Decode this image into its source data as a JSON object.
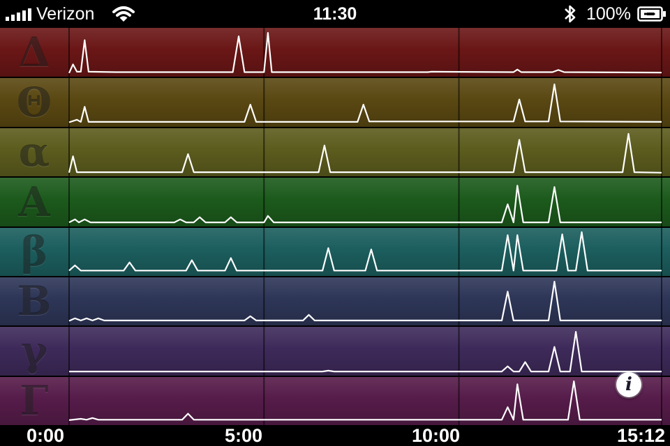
{
  "status_bar": {
    "carrier": "Verizon",
    "time": "11:30",
    "battery": "100%",
    "icons": [
      "signal-bars-icon",
      "wifi-icon",
      "bluetooth-icon",
      "battery-charging-icon"
    ]
  },
  "info_button": {
    "glyph": "i",
    "icon": "info-icon"
  },
  "chart_data": {
    "type": "line",
    "title": "",
    "xlabel": "",
    "ylabel": "",
    "x_unit": "minutes",
    "xlim": [
      0,
      15.2
    ],
    "ylim": [
      0,
      1
    ],
    "grid": true,
    "x_ticks": [
      {
        "value": 0,
        "label": "0:00"
      },
      {
        "value": 5,
        "label": "5:00"
      },
      {
        "value": 10,
        "label": "10:00"
      },
      {
        "value": 15.2,
        "label": "15:12"
      }
    ],
    "series": [
      {
        "name": "Δ",
        "color": "#6a1616",
        "points": [
          [
            0,
            0.02
          ],
          [
            0.1,
            0.22
          ],
          [
            0.2,
            0.05
          ],
          [
            0.3,
            0.05
          ],
          [
            0.4,
            0.78
          ],
          [
            0.5,
            0.05
          ],
          [
            1.2,
            0.04
          ],
          [
            4.2,
            0.04
          ],
          [
            4.35,
            0.87
          ],
          [
            4.5,
            0.04
          ],
          [
            5.0,
            0.04
          ],
          [
            5.1,
            0.95
          ],
          [
            5.2,
            0.04
          ],
          [
            9.2,
            0.04
          ],
          [
            9.3,
            0.05
          ],
          [
            11.4,
            0.04
          ],
          [
            11.5,
            0.1
          ],
          [
            11.6,
            0.04
          ],
          [
            12.4,
            0.04
          ],
          [
            12.55,
            0.09
          ],
          [
            12.7,
            0.04
          ],
          [
            15.2,
            0.03
          ]
        ]
      },
      {
        "name": "Θ",
        "color": "#5a4812",
        "points": [
          [
            0,
            0.04
          ],
          [
            0.2,
            0.1
          ],
          [
            0.3,
            0.05
          ],
          [
            0.4,
            0.4
          ],
          [
            0.5,
            0.05
          ],
          [
            4.5,
            0.05
          ],
          [
            4.65,
            0.45
          ],
          [
            4.8,
            0.05
          ],
          [
            7.4,
            0.05
          ],
          [
            7.55,
            0.45
          ],
          [
            7.7,
            0.06
          ],
          [
            11.4,
            0.06
          ],
          [
            11.55,
            0.57
          ],
          [
            11.7,
            0.06
          ],
          [
            12.3,
            0.06
          ],
          [
            12.45,
            0.92
          ],
          [
            12.6,
            0.06
          ],
          [
            15.2,
            0.05
          ]
        ]
      },
      {
        "name": "α",
        "color": "#5c5c1e",
        "points": [
          [
            0,
            0.02
          ],
          [
            0.1,
            0.4
          ],
          [
            0.2,
            0.03
          ],
          [
            2.9,
            0.03
          ],
          [
            3.05,
            0.45
          ],
          [
            3.2,
            0.03
          ],
          [
            6.4,
            0.03
          ],
          [
            6.55,
            0.65
          ],
          [
            6.7,
            0.03
          ],
          [
            11.4,
            0.03
          ],
          [
            11.55,
            0.78
          ],
          [
            11.7,
            0.03
          ],
          [
            14.2,
            0.03
          ],
          [
            14.35,
            0.92
          ],
          [
            14.5,
            0.03
          ],
          [
            15.2,
            0.02
          ]
        ]
      },
      {
        "name": "A",
        "color": "#1c5a1c",
        "points": [
          [
            0,
            0.03
          ],
          [
            0.15,
            0.1
          ],
          [
            0.25,
            0.03
          ],
          [
            0.4,
            0.1
          ],
          [
            0.55,
            0.03
          ],
          [
            2.7,
            0.03
          ],
          [
            2.85,
            0.1
          ],
          [
            3.0,
            0.03
          ],
          [
            3.2,
            0.03
          ],
          [
            3.35,
            0.15
          ],
          [
            3.5,
            0.03
          ],
          [
            4.0,
            0.03
          ],
          [
            4.15,
            0.15
          ],
          [
            4.3,
            0.03
          ],
          [
            5.0,
            0.03
          ],
          [
            5.1,
            0.18
          ],
          [
            5.25,
            0.03
          ],
          [
            11.1,
            0.03
          ],
          [
            11.25,
            0.45
          ],
          [
            11.4,
            0.03
          ],
          [
            11.5,
            0.88
          ],
          [
            11.65,
            0.03
          ],
          [
            12.3,
            0.03
          ],
          [
            12.45,
            0.85
          ],
          [
            12.6,
            0.03
          ],
          [
            15.2,
            0.03
          ]
        ]
      },
      {
        "name": "β",
        "color": "#1c5e5e",
        "points": [
          [
            0,
            0.06
          ],
          [
            0.15,
            0.18
          ],
          [
            0.3,
            0.06
          ],
          [
            1.4,
            0.06
          ],
          [
            1.55,
            0.25
          ],
          [
            1.7,
            0.06
          ],
          [
            3.0,
            0.06
          ],
          [
            3.15,
            0.3
          ],
          [
            3.3,
            0.06
          ],
          [
            4.0,
            0.06
          ],
          [
            4.15,
            0.35
          ],
          [
            4.3,
            0.06
          ],
          [
            6.5,
            0.06
          ],
          [
            6.65,
            0.58
          ],
          [
            6.8,
            0.06
          ],
          [
            7.6,
            0.06
          ],
          [
            7.75,
            0.55
          ],
          [
            7.9,
            0.06
          ],
          [
            11.1,
            0.06
          ],
          [
            11.25,
            0.88
          ],
          [
            11.4,
            0.06
          ],
          [
            11.5,
            0.88
          ],
          [
            11.65,
            0.06
          ],
          [
            12.5,
            0.06
          ],
          [
            12.65,
            0.9
          ],
          [
            12.8,
            0.06
          ],
          [
            13.0,
            0.06
          ],
          [
            13.15,
            0.95
          ],
          [
            13.3,
            0.06
          ],
          [
            15.2,
            0.06
          ]
        ]
      },
      {
        "name": "B",
        "color": "#2e3658",
        "points": [
          [
            0,
            0.04
          ],
          [
            0.15,
            0.1
          ],
          [
            0.3,
            0.05
          ],
          [
            0.45,
            0.1
          ],
          [
            0.6,
            0.05
          ],
          [
            0.75,
            0.1
          ],
          [
            0.9,
            0.05
          ],
          [
            4.5,
            0.05
          ],
          [
            4.65,
            0.15
          ],
          [
            4.8,
            0.05
          ],
          [
            6.0,
            0.05
          ],
          [
            6.15,
            0.18
          ],
          [
            6.3,
            0.05
          ],
          [
            11.1,
            0.05
          ],
          [
            11.25,
            0.72
          ],
          [
            11.4,
            0.05
          ],
          [
            12.3,
            0.05
          ],
          [
            12.45,
            0.95
          ],
          [
            12.6,
            0.05
          ],
          [
            15.2,
            0.05
          ]
        ]
      },
      {
        "name": "γ",
        "color": "#3e2a5a",
        "points": [
          [
            0,
            0.03
          ],
          [
            6.5,
            0.03
          ],
          [
            6.65,
            0.05
          ],
          [
            6.8,
            0.03
          ],
          [
            11.1,
            0.03
          ],
          [
            11.25,
            0.15
          ],
          [
            11.4,
            0.03
          ],
          [
            11.55,
            0.03
          ],
          [
            11.7,
            0.25
          ],
          [
            11.85,
            0.03
          ],
          [
            12.3,
            0.03
          ],
          [
            12.45,
            0.6
          ],
          [
            12.6,
            0.03
          ],
          [
            12.85,
            0.03
          ],
          [
            13.0,
            0.95
          ],
          [
            13.15,
            0.03
          ],
          [
            15.2,
            0.03
          ]
        ]
      },
      {
        "name": "Γ",
        "color": "#561c4a",
        "points": [
          [
            0,
            0.05
          ],
          [
            0.3,
            0.08
          ],
          [
            0.45,
            0.06
          ],
          [
            0.6,
            0.1
          ],
          [
            0.75,
            0.06
          ],
          [
            2.9,
            0.06
          ],
          [
            3.05,
            0.2
          ],
          [
            3.2,
            0.06
          ],
          [
            11.1,
            0.06
          ],
          [
            11.25,
            0.35
          ],
          [
            11.4,
            0.06
          ],
          [
            11.5,
            0.88
          ],
          [
            11.65,
            0.06
          ],
          [
            12.8,
            0.06
          ],
          [
            12.95,
            0.95
          ],
          [
            13.1,
            0.06
          ],
          [
            15.2,
            0.06
          ]
        ]
      }
    ]
  }
}
